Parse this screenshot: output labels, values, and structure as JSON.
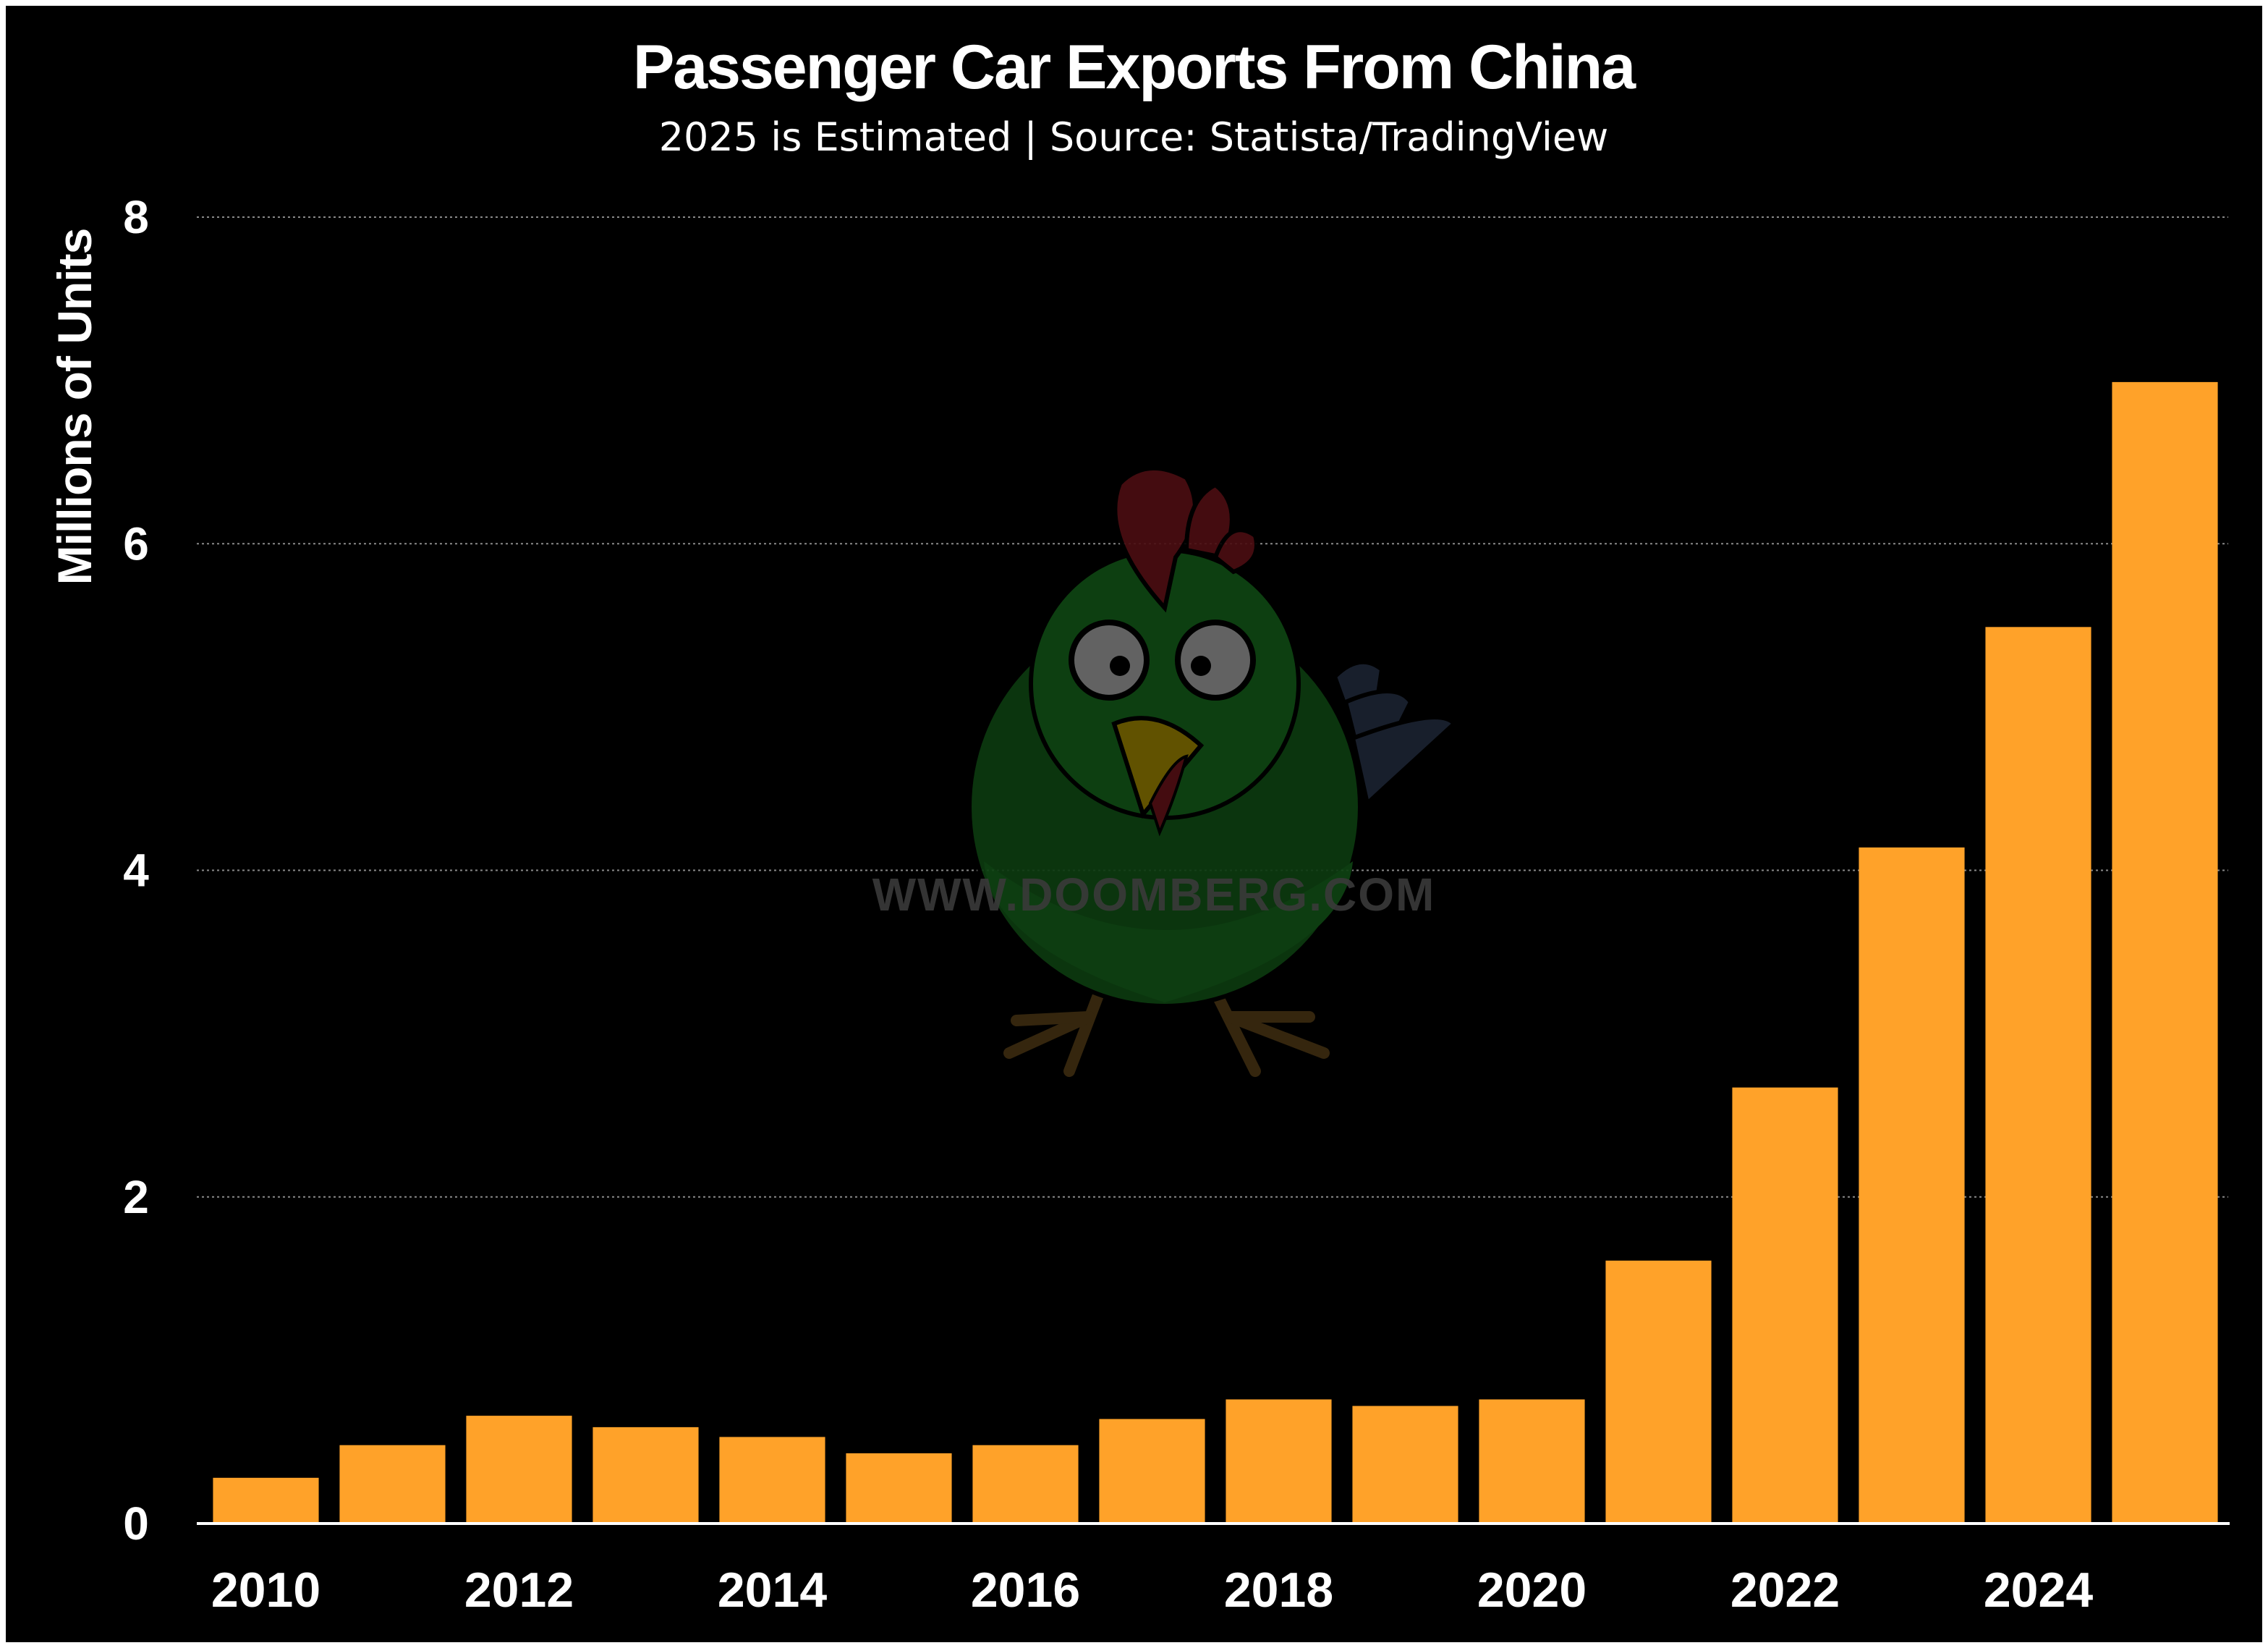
{
  "watermark": {
    "text": "WWW.DOOMBERG.COM",
    "icon": "chicken-mascot-icon"
  },
  "colors": {
    "background": "#000000",
    "bar": "#ffa229",
    "text": "#ffffff",
    "grid": "#8a8a8a"
  },
  "chart_data": {
    "type": "bar",
    "title": "Passenger Car Exports From China",
    "subtitle": "2025 is Estimated | Source: Statista/TradingView",
    "xlabel": "",
    "ylabel": "Millions of Units",
    "ylim": [
      0,
      8
    ],
    "yticks": [
      0,
      2,
      4,
      6,
      8
    ],
    "xtick_labels": [
      "2010",
      "2012",
      "2014",
      "2016",
      "2018",
      "2020",
      "2022",
      "2024"
    ],
    "categories": [
      "2010",
      "2011",
      "2012",
      "2013",
      "2014",
      "2015",
      "2016",
      "2017",
      "2018",
      "2019",
      "2020",
      "2021",
      "2022",
      "2023",
      "2024",
      "2025"
    ],
    "values": [
      0.28,
      0.48,
      0.66,
      0.59,
      0.53,
      0.43,
      0.48,
      0.64,
      0.76,
      0.72,
      0.76,
      1.61,
      2.67,
      4.14,
      5.49,
      6.99
    ],
    "grid": true,
    "grid_style": "dotted horizontal",
    "legend": "none"
  }
}
